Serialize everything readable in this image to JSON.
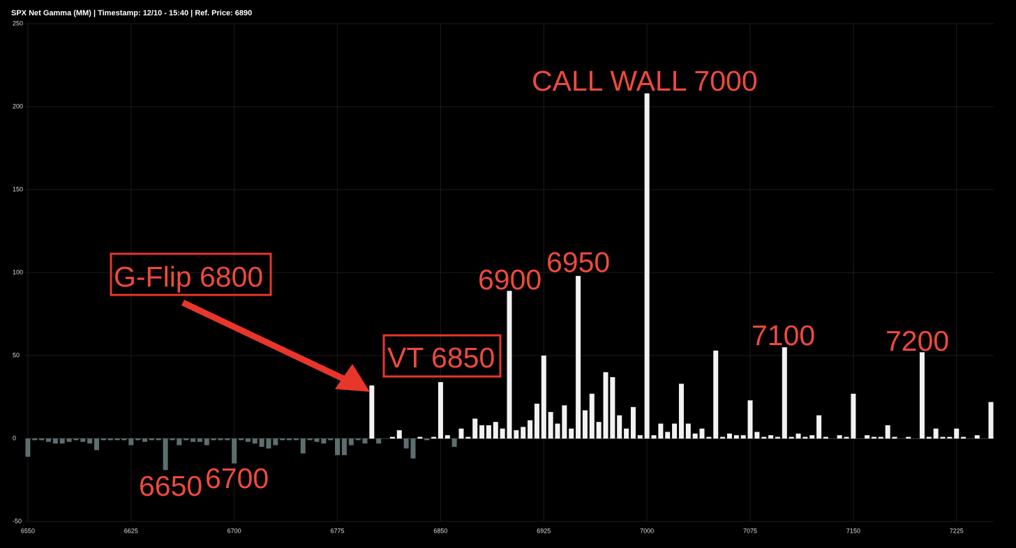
{
  "chart_data": {
    "type": "bar",
    "title": "SPX Net Gamma (MM) | Timestamp: 12/10 - 15:40  | Ref. Price: 6890",
    "x": [
      6550,
      6555,
      6560,
      6565,
      6570,
      6575,
      6580,
      6585,
      6590,
      6595,
      6600,
      6605,
      6610,
      6615,
      6620,
      6625,
      6630,
      6635,
      6640,
      6645,
      6650,
      6655,
      6660,
      6665,
      6670,
      6675,
      6680,
      6685,
      6690,
      6695,
      6700,
      6705,
      6710,
      6715,
      6720,
      6725,
      6730,
      6735,
      6740,
      6745,
      6750,
      6755,
      6760,
      6765,
      6770,
      6775,
      6780,
      6785,
      6790,
      6795,
      6800,
      6805,
      6810,
      6815,
      6820,
      6825,
      6830,
      6835,
      6840,
      6845,
      6850,
      6855,
      6860,
      6865,
      6870,
      6875,
      6880,
      6885,
      6890,
      6895,
      6900,
      6905,
      6910,
      6915,
      6920,
      6925,
      6930,
      6935,
      6940,
      6945,
      6950,
      6955,
      6960,
      6965,
      6970,
      6975,
      6980,
      6985,
      6990,
      6995,
      7000,
      7005,
      7010,
      7015,
      7020,
      7025,
      7030,
      7035,
      7040,
      7045,
      7050,
      7055,
      7060,
      7065,
      7070,
      7075,
      7080,
      7085,
      7090,
      7095,
      7100,
      7105,
      7110,
      7115,
      7120,
      7125,
      7130,
      7135,
      7140,
      7145,
      7150,
      7155,
      7160,
      7165,
      7170,
      7175,
      7180,
      7185,
      7190,
      7195,
      7200,
      7205,
      7210,
      7215,
      7220,
      7225,
      7230,
      7235,
      7240,
      7245,
      7250
    ],
    "values": [
      -11,
      -1,
      -1,
      -2,
      -3,
      -3,
      -2,
      -1,
      -2,
      -3,
      -7,
      -1,
      -1,
      -1,
      -1,
      -4,
      -1,
      -2,
      -1,
      -1,
      -19,
      -1,
      -4,
      -1,
      -2,
      -2,
      -4,
      -1,
      -1,
      -1,
      -15,
      -1,
      -2,
      -3,
      -5,
      -6,
      -4,
      -1,
      -1,
      -1,
      -9,
      -1,
      -2,
      -3,
      -1,
      -10,
      -10,
      -4,
      -1,
      -3,
      32,
      -3,
      0,
      1,
      5,
      -6,
      -12,
      1,
      -1,
      1,
      34,
      2,
      -5,
      6,
      1,
      12,
      8,
      8,
      10,
      6,
      89,
      5,
      7,
      11,
      21,
      50,
      16,
      9,
      20,
      6,
      98,
      17,
      27,
      10,
      40,
      37,
      14,
      6,
      19,
      2,
      208,
      2,
      9,
      4,
      9,
      33,
      9,
      3,
      6,
      1,
      53,
      1,
      3,
      2,
      2,
      23,
      4,
      1,
      2,
      1,
      55,
      1,
      3,
      1,
      2,
      14,
      1,
      0,
      2,
      1,
      27,
      0,
      2,
      1,
      1,
      8,
      1,
      0,
      1,
      0,
      52,
      1,
      6,
      1,
      1,
      6,
      1,
      0,
      2,
      0,
      22
    ],
    "positive_color": "#f2f2f2",
    "negative_color": "#5c6e6e",
    "xlim": [
      6548,
      7252
    ],
    "xticks": [
      6550,
      6625,
      6700,
      6775,
      6850,
      6925,
      7000,
      7075,
      7150,
      7225
    ],
    "ylim": [
      -50,
      250
    ],
    "yticks": [
      -50,
      0,
      50,
      100,
      150,
      200,
      250
    ],
    "grid": true,
    "annotations": [
      "CALL WALL 7000",
      "6900",
      "6950",
      "7100",
      "7200",
      "6650",
      "6700",
      "G-Flip 6800",
      "VT 6850"
    ]
  }
}
